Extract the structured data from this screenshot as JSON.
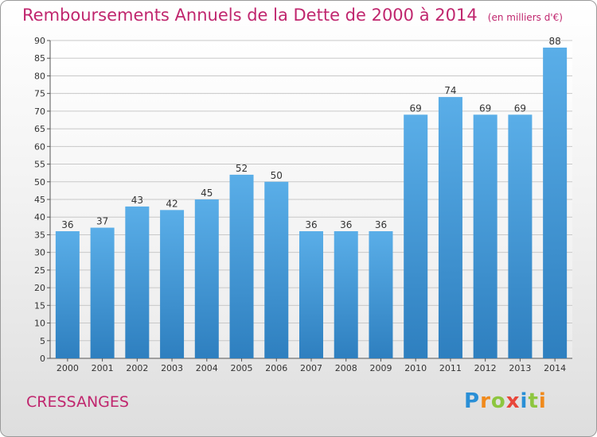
{
  "chart_data": {
    "type": "bar",
    "title": "Remboursements Annuels de la Dette de 2000 à 2014",
    "subtitle": "(en milliers d'€)",
    "categories": [
      "2000",
      "2001",
      "2002",
      "2003",
      "2004",
      "2005",
      "2006",
      "2007",
      "2008",
      "2009",
      "2010",
      "2011",
      "2012",
      "2013",
      "2014"
    ],
    "values": [
      36,
      37,
      43,
      42,
      45,
      52,
      50,
      36,
      36,
      36,
      69,
      74,
      69,
      69,
      88
    ],
    "ylim": [
      0,
      90
    ],
    "yticks": [
      0,
      5,
      10,
      15,
      20,
      25,
      30,
      35,
      40,
      45,
      50,
      55,
      60,
      65,
      70,
      75,
      80,
      85,
      90
    ],
    "grid": true,
    "xlabel": "",
    "ylabel": ""
  },
  "footer": {
    "commune": "CRESSANGES"
  },
  "logo": {
    "text": "Proxiti",
    "letters": [
      "P",
      "r",
      "o",
      "x",
      "i",
      "t",
      "i"
    ],
    "colors": [
      "#2a8fd6",
      "#f08a1c",
      "#8dc63f",
      "#e8463a",
      "#2a8fd6",
      "#8dc63f",
      "#f08a1c"
    ]
  },
  "colors": {
    "title": "#c0266e",
    "bar_light": "#5aaee8",
    "bar_dark": "#2e7fbf",
    "grid": "#c8c8c8"
  }
}
